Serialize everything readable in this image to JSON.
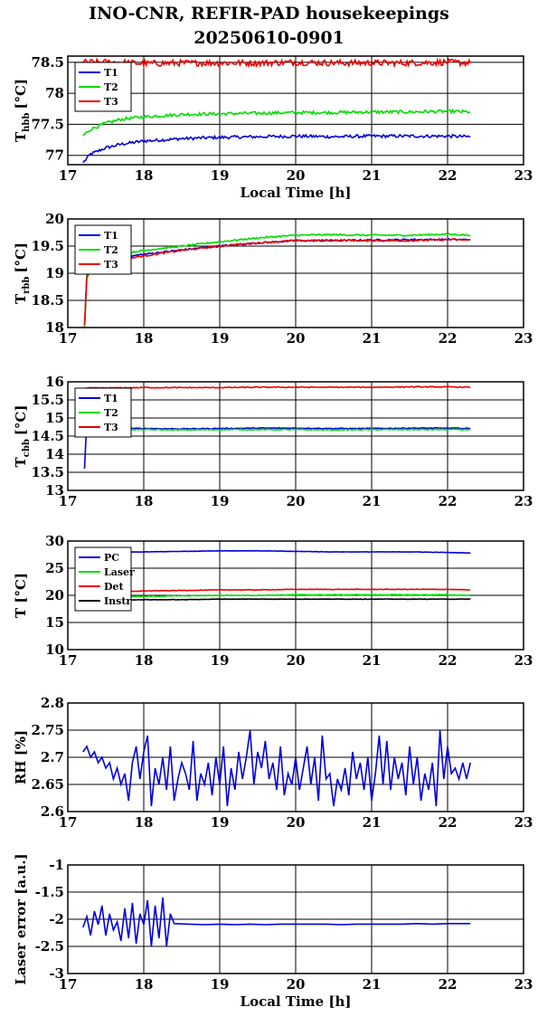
{
  "title": "INO-CNR, REFIR-PAD housekeepings",
  "subtitle": "20250610-0901",
  "colors": {
    "blue": "#0000dd",
    "green": "#00dd00",
    "red": "#ee0000",
    "black": "#000000"
  },
  "chart_data": [
    {
      "type": "line",
      "ylabel": "T",
      "ylabel_sub": "hbb",
      "ylabel_unit": "[°C]",
      "xlabel": "Local Time [h]",
      "xlim": [
        17,
        23
      ],
      "ylim": [
        76.85,
        78.6
      ],
      "xticks": [
        "17",
        "18",
        "19",
        "20",
        "21",
        "22",
        "23"
      ],
      "yticks": [
        77,
        77.5,
        78,
        78.5
      ],
      "ytick_labels": [
        "77",
        "77.5",
        "78",
        "78.5"
      ],
      "grid": true,
      "legend": "top-left",
      "x": [
        17.2,
        17.3,
        17.5,
        17.7,
        18.0,
        18.5,
        19.0,
        19.5,
        20.0,
        20.5,
        21.0,
        21.5,
        22.0,
        22.3
      ],
      "series": [
        {
          "name": "T1",
          "color": "#0000dd",
          "noise": 0.025,
          "values": [
            76.88,
            77.02,
            77.12,
            77.18,
            77.23,
            77.27,
            77.29,
            77.3,
            77.31,
            77.3,
            77.31,
            77.31,
            77.31,
            77.3
          ]
        },
        {
          "name": "T2",
          "color": "#00dd00",
          "noise": 0.025,
          "values": [
            77.32,
            77.42,
            77.52,
            77.58,
            77.62,
            77.66,
            77.67,
            77.68,
            77.69,
            77.69,
            77.7,
            77.7,
            77.71,
            77.7
          ]
        },
        {
          "name": "T3",
          "color": "#ee0000",
          "noise": 0.05,
          "values": [
            78.5,
            78.5,
            78.5,
            78.5,
            78.48,
            78.49,
            78.49,
            78.49,
            78.5,
            78.49,
            78.49,
            78.49,
            78.5,
            78.49
          ]
        }
      ]
    },
    {
      "type": "line",
      "ylabel": "T",
      "ylabel_sub": "rbb",
      "ylabel_unit": "[°C]",
      "xlabel": "",
      "xlim": [
        17,
        23
      ],
      "ylim": [
        18,
        20
      ],
      "xticks": [
        "17",
        "18",
        "19",
        "20",
        "21",
        "22",
        "23"
      ],
      "yticks": [
        18,
        18.5,
        19,
        19.5,
        20
      ],
      "ytick_labels": [
        "18",
        "18.5",
        "19",
        "19.5",
        "20"
      ],
      "grid": true,
      "legend": "top-left",
      "x": [
        17.22,
        17.25,
        17.3,
        17.5,
        18.0,
        18.5,
        19.0,
        19.5,
        20.0,
        20.5,
        21.0,
        21.5,
        22.0,
        22.3
      ],
      "series": [
        {
          "name": "T1",
          "color": "#0000dd",
          "noise": 0.015,
          "values": [
            18.0,
            18.95,
            19.15,
            19.25,
            19.35,
            19.43,
            19.5,
            19.56,
            19.6,
            19.6,
            19.61,
            19.62,
            19.62,
            19.62
          ]
        },
        {
          "name": "T2",
          "color": "#00dd00",
          "noise": 0.015,
          "values": [
            18.0,
            19.0,
            19.22,
            19.32,
            19.42,
            19.5,
            19.58,
            19.65,
            19.7,
            19.71,
            19.7,
            19.7,
            19.72,
            19.7
          ]
        },
        {
          "name": "T3",
          "color": "#ee0000",
          "noise": 0.015,
          "values": [
            18.05,
            18.9,
            19.1,
            19.2,
            19.32,
            19.42,
            19.5,
            19.56,
            19.6,
            19.61,
            19.6,
            19.6,
            19.62,
            19.61
          ]
        }
      ]
    },
    {
      "type": "line",
      "ylabel": "T",
      "ylabel_sub": "cbb",
      "ylabel_unit": "[°C]",
      "xlabel": "",
      "xlim": [
        17,
        23
      ],
      "ylim": [
        13,
        16
      ],
      "xticks": [
        "17",
        "18",
        "19",
        "20",
        "21",
        "22",
        "23"
      ],
      "yticks": [
        13,
        13.5,
        14,
        14.5,
        15,
        15.5,
        16
      ],
      "ytick_labels": [
        "13",
        "13.5",
        "14",
        "14.5",
        "15",
        "15.5",
        "16"
      ],
      "grid": true,
      "legend": "top-left",
      "x": [
        17.22,
        17.24,
        17.3,
        17.5,
        18.0,
        18.5,
        19.0,
        19.5,
        20.0,
        20.5,
        21.0,
        21.5,
        22.0,
        22.3
      ],
      "series": [
        {
          "name": "T1",
          "color": "#0000dd",
          "noise": 0.012,
          "values": [
            13.6,
            14.5,
            14.7,
            14.72,
            14.71,
            14.7,
            14.71,
            14.72,
            14.72,
            14.71,
            14.71,
            14.72,
            14.72,
            14.71
          ]
        },
        {
          "name": "T2",
          "color": "#00dd00",
          "noise": 0.015,
          "values": [
            14.6,
            14.65,
            14.68,
            14.67,
            14.68,
            14.67,
            14.68,
            14.68,
            14.68,
            14.67,
            14.68,
            14.68,
            14.68,
            14.68
          ]
        },
        {
          "name": "T3",
          "color": "#ee0000",
          "noise": 0.012,
          "values": [
            15.8,
            15.82,
            15.83,
            15.83,
            15.84,
            15.84,
            15.84,
            15.85,
            15.85,
            15.85,
            15.85,
            15.86,
            15.86,
            15.85
          ]
        }
      ]
    },
    {
      "type": "line",
      "ylabel": "T [°C]",
      "xlabel": "",
      "xlim": [
        17,
        23
      ],
      "ylim": [
        10,
        30
      ],
      "xticks": [
        "17",
        "18",
        "19",
        "20",
        "21",
        "22",
        "23"
      ],
      "yticks": [
        10,
        15,
        20,
        25,
        30
      ],
      "ytick_labels": [
        "10",
        "15",
        "20",
        "25",
        "30"
      ],
      "grid": true,
      "legend": "top-left",
      "x": [
        17.2,
        17.5,
        18.0,
        18.5,
        19.0,
        19.5,
        20.0,
        20.5,
        21.0,
        21.5,
        22.0,
        22.3
      ],
      "series": [
        {
          "name": "PC",
          "color": "#0000dd",
          "noise": 0.03,
          "values": [
            27.9,
            27.9,
            28.0,
            28.1,
            28.2,
            28.2,
            28.1,
            28.0,
            28.0,
            28.0,
            27.9,
            27.8
          ]
        },
        {
          "name": "Laser",
          "color": "#00dd00",
          "noise": 0.06,
          "values": [
            19.6,
            19.7,
            19.8,
            19.9,
            20.0,
            20.0,
            20.1,
            20.1,
            20.1,
            20.1,
            20.1,
            20.0
          ]
        },
        {
          "name": "Det",
          "color": "#ee0000",
          "noise": 0.05,
          "values": [
            20.5,
            20.6,
            20.8,
            20.9,
            21.0,
            21.0,
            21.1,
            21.1,
            21.1,
            21.1,
            21.1,
            21.0
          ]
        },
        {
          "name": "Instr",
          "color": "#000000",
          "noise": 0.03,
          "values": [
            19.0,
            19.1,
            19.2,
            19.2,
            19.3,
            19.3,
            19.3,
            19.3,
            19.3,
            19.3,
            19.3,
            19.3
          ]
        }
      ]
    },
    {
      "type": "line",
      "ylabel": "RH [%]",
      "xlabel": "",
      "xlim": [
        17,
        23
      ],
      "ylim": [
        2.6,
        2.8
      ],
      "xticks": [
        "17",
        "18",
        "19",
        "20",
        "21",
        "22",
        "23"
      ],
      "yticks": [
        2.6,
        2.65,
        2.7,
        2.75,
        2.8
      ],
      "ytick_labels": [
        "2.6",
        "2.65",
        "2.7",
        "2.75",
        "2.8"
      ],
      "grid": true,
      "legend": "none",
      "series": [
        {
          "name": "",
          "color": "#0000dd",
          "noise": 0.0,
          "x": [
            17.2,
            17.25,
            17.3,
            17.35,
            17.4,
            17.45,
            17.5,
            17.55,
            17.6,
            17.65,
            17.7,
            17.75,
            17.8,
            17.85,
            17.9,
            17.95,
            18.0,
            18.05,
            18.1,
            18.15,
            18.2,
            18.25,
            18.3,
            18.35,
            18.4,
            18.45,
            18.5,
            18.55,
            18.6,
            18.65,
            18.7,
            18.75,
            18.8,
            18.85,
            18.9,
            18.95,
            19.0,
            19.05,
            19.1,
            19.15,
            19.2,
            19.25,
            19.3,
            19.35,
            19.4,
            19.45,
            19.5,
            19.55,
            19.6,
            19.65,
            19.7,
            19.75,
            19.8,
            19.85,
            19.9,
            19.95,
            20.0,
            20.05,
            20.1,
            20.15,
            20.2,
            20.25,
            20.3,
            20.35,
            20.4,
            20.45,
            20.5,
            20.55,
            20.6,
            20.65,
            20.7,
            20.75,
            20.8,
            20.85,
            20.9,
            20.95,
            21.0,
            21.05,
            21.1,
            21.15,
            21.2,
            21.25,
            21.3,
            21.35,
            21.4,
            21.45,
            21.5,
            21.55,
            21.6,
            21.65,
            21.7,
            21.75,
            21.8,
            21.85,
            21.9,
            21.95,
            22.0,
            22.05,
            22.1,
            22.15,
            22.2,
            22.25,
            22.3
          ],
          "values": [
            2.71,
            2.72,
            2.7,
            2.71,
            2.69,
            2.7,
            2.68,
            2.69,
            2.66,
            2.68,
            2.65,
            2.67,
            2.62,
            2.69,
            2.72,
            2.66,
            2.71,
            2.74,
            2.61,
            2.68,
            2.65,
            2.7,
            2.64,
            2.72,
            2.62,
            2.66,
            2.69,
            2.67,
            2.64,
            2.73,
            2.62,
            2.67,
            2.65,
            2.69,
            2.63,
            2.7,
            2.65,
            2.72,
            2.61,
            2.68,
            2.64,
            2.71,
            2.66,
            2.7,
            2.75,
            2.65,
            2.71,
            2.68,
            2.73,
            2.66,
            2.69,
            2.64,
            2.72,
            2.63,
            2.67,
            2.65,
            2.7,
            2.64,
            2.68,
            2.72,
            2.65,
            2.7,
            2.62,
            2.74,
            2.66,
            2.67,
            2.61,
            2.66,
            2.64,
            2.68,
            2.63,
            2.71,
            2.66,
            2.69,
            2.64,
            2.7,
            2.62,
            2.67,
            2.74,
            2.65,
            2.73,
            2.64,
            2.7,
            2.66,
            2.69,
            2.63,
            2.72,
            2.65,
            2.7,
            2.62,
            2.67,
            2.64,
            2.69,
            2.61,
            2.75,
            2.66,
            2.72,
            2.67,
            2.68,
            2.66,
            2.69,
            2.66,
            2.69
          ]
        }
      ]
    },
    {
      "type": "line",
      "ylabel": "Laser error [a.u.]",
      "xlabel": "Local Time [h]",
      "xlim": [
        17,
        23
      ],
      "ylim": [
        -3,
        -1
      ],
      "xticks": [
        "17",
        "18",
        "19",
        "20",
        "21",
        "22",
        "23"
      ],
      "yticks": [
        -3,
        -2.5,
        -2,
        -1.5,
        -1
      ],
      "ytick_labels": [
        "-3",
        "-2.5",
        "-2",
        "-1.5",
        "-1"
      ],
      "grid": true,
      "legend": "none",
      "series": [
        {
          "name": "",
          "color": "#0000dd",
          "noise": 0.0,
          "x": [
            17.2,
            17.25,
            17.3,
            17.35,
            17.4,
            17.45,
            17.5,
            17.55,
            17.6,
            17.65,
            17.7,
            17.75,
            17.8,
            17.85,
            17.9,
            17.95,
            18.0,
            18.05,
            18.1,
            18.15,
            18.2,
            18.25,
            18.3,
            18.35,
            18.4,
            18.6,
            18.8,
            19.0,
            19.2,
            19.4,
            19.6,
            19.8,
            20.0,
            20.2,
            20.4,
            20.6,
            20.8,
            21.0,
            21.2,
            21.4,
            21.6,
            21.8,
            22.0,
            22.2,
            22.3
          ],
          "values": [
            -2.15,
            -1.95,
            -2.3,
            -1.85,
            -2.1,
            -1.75,
            -2.3,
            -1.9,
            -2.2,
            -2.05,
            -2.4,
            -1.8,
            -2.35,
            -1.7,
            -2.45,
            -1.9,
            -2.1,
            -1.65,
            -2.5,
            -1.75,
            -2.35,
            -1.6,
            -2.5,
            -1.9,
            -2.08,
            -2.09,
            -2.1,
            -2.09,
            -2.1,
            -2.09,
            -2.1,
            -2.09,
            -2.09,
            -2.09,
            -2.09,
            -2.1,
            -2.09,
            -2.09,
            -2.09,
            -2.09,
            -2.08,
            -2.09,
            -2.08,
            -2.08,
            -2.08
          ]
        }
      ]
    }
  ]
}
